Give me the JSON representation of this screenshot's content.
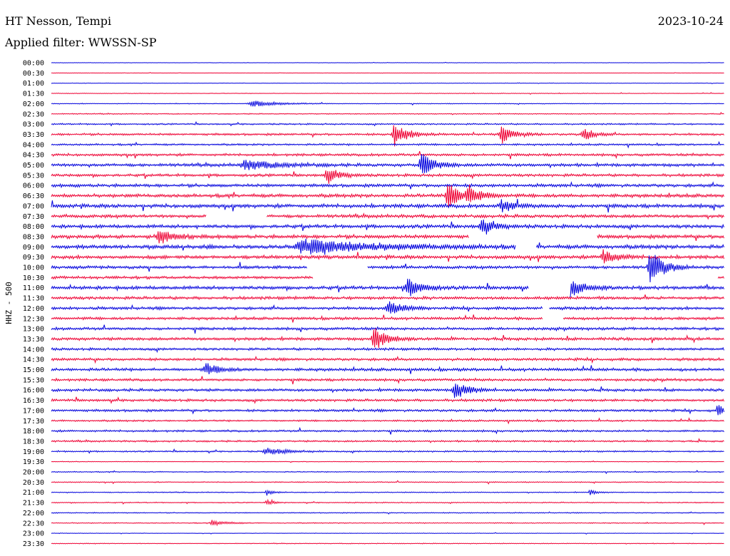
{
  "header": {
    "station": "HT Nesson, Tempi",
    "date": "2023-10-24",
    "filter": "Applied filter: WWSSN-SP"
  },
  "chart_data": {
    "type": "line",
    "chart_kind": "helicorder",
    "ylabel": "HHZ - 500",
    "row_labels": [
      "00:00",
      "00:30",
      "01:00",
      "01:30",
      "02:00",
      "02:30",
      "03:00",
      "03:30",
      "04:00",
      "04:30",
      "05:00",
      "05:30",
      "06:00",
      "06:30",
      "07:00",
      "07:30",
      "08:00",
      "08:30",
      "09:00",
      "09:30",
      "10:00",
      "10:30",
      "11:00",
      "11:30",
      "12:00",
      "12:30",
      "13:00",
      "13:30",
      "14:00",
      "14:30",
      "15:00",
      "15:30",
      "16:00",
      "16:30",
      "17:00",
      "17:30",
      "18:00",
      "18:30",
      "19:00",
      "19:30",
      "20:00",
      "20:30",
      "21:00",
      "21:30",
      "22:00",
      "22:30",
      "23:00",
      "23:30"
    ],
    "colors": [
      "#0000dd",
      "#ee0033"
    ],
    "noise_levels": [
      0.3,
      0.3,
      0.4,
      0.5,
      0.6,
      0.8,
      1.2,
      1.8,
      1.5,
      2.0,
      2.5,
      2.2,
      2.6,
      2.8,
      3.0,
      2.6,
      2.8,
      3.0,
      3.2,
      2.8,
      2.4,
      2.2,
      2.8,
      2.4,
      2.4,
      2.2,
      2.2,
      2.4,
      2.0,
      2.2,
      2.4,
      2.0,
      2.2,
      2.0,
      2.0,
      1.4,
      1.6,
      1.4,
      1.2,
      0.6,
      0.8,
      0.8,
      0.8,
      0.8,
      0.8,
      0.8,
      0.4,
      0.6
    ],
    "events": [
      {
        "row": 4,
        "pos": 0.3,
        "amp": 4,
        "dur": 0.04
      },
      {
        "row": 7,
        "pos": 0.51,
        "amp": 16,
        "dur": 0.02
      },
      {
        "row": 7,
        "pos": 0.67,
        "amp": 12,
        "dur": 0.02
      },
      {
        "row": 7,
        "pos": 0.79,
        "amp": 10,
        "dur": 0.015
      },
      {
        "row": 10,
        "pos": 0.29,
        "amp": 6,
        "dur": 0.05
      },
      {
        "row": 10,
        "pos": 0.55,
        "amp": 16,
        "dur": 0.02
      },
      {
        "row": 11,
        "pos": 0.41,
        "amp": 10,
        "dur": 0.02
      },
      {
        "row": 13,
        "pos": 0.59,
        "amp": 18,
        "dur": 0.02
      },
      {
        "row": 13,
        "pos": 0.62,
        "amp": 12,
        "dur": 0.02
      },
      {
        "row": 14,
        "pos": 0.67,
        "amp": 8,
        "dur": 0.02
      },
      {
        "row": 16,
        "pos": 0.64,
        "amp": 10,
        "dur": 0.02
      },
      {
        "row": 17,
        "pos": 0.16,
        "amp": 10,
        "dur": 0.02
      },
      {
        "row": 18,
        "pos": 0.38,
        "amp": 10,
        "dur": 0.1
      },
      {
        "row": 19,
        "pos": 0.82,
        "amp": 10,
        "dur": 0.02
      },
      {
        "row": 20,
        "pos": 0.89,
        "amp": 24,
        "dur": 0.02
      },
      {
        "row": 22,
        "pos": 0.53,
        "amp": 14,
        "dur": 0.02
      },
      {
        "row": 22,
        "pos": 0.77,
        "amp": 14,
        "dur": 0.02
      },
      {
        "row": 24,
        "pos": 0.5,
        "amp": 12,
        "dur": 0.02
      },
      {
        "row": 27,
        "pos": 0.48,
        "amp": 16,
        "dur": 0.02
      },
      {
        "row": 30,
        "pos": 0.23,
        "amp": 8,
        "dur": 0.02
      },
      {
        "row": 32,
        "pos": 0.6,
        "amp": 12,
        "dur": 0.02
      },
      {
        "row": 34,
        "pos": 0.99,
        "amp": 8,
        "dur": 0.01
      },
      {
        "row": 38,
        "pos": 0.32,
        "amp": 5,
        "dur": 0.03
      },
      {
        "row": 42,
        "pos": 0.32,
        "amp": 4,
        "dur": 0.01
      },
      {
        "row": 42,
        "pos": 0.8,
        "amp": 4,
        "dur": 0.01
      },
      {
        "row": 43,
        "pos": 0.32,
        "amp": 4,
        "dur": 0.01
      },
      {
        "row": 45,
        "pos": 0.24,
        "amp": 4,
        "dur": 0.02
      }
    ],
    "gaps": [
      {
        "row": 15,
        "start": 0.23,
        "end": 0.32
      },
      {
        "row": 17,
        "start": 0.62,
        "end": 0.81
      },
      {
        "row": 18,
        "start": 0.69,
        "end": 0.72
      },
      {
        "row": 20,
        "start": 0.38,
        "end": 0.47
      },
      {
        "row": 21,
        "start": 0.39,
        "end": 0.99
      },
      {
        "row": 22,
        "start": 0.71,
        "end": 0.77
      },
      {
        "row": 24,
        "start": 0.73,
        "end": 0.74
      },
      {
        "row": 25,
        "start": 0.73,
        "end": 0.76
      }
    ]
  }
}
